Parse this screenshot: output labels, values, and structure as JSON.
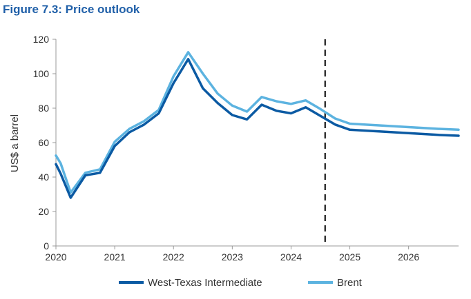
{
  "figure_title": "Figure 7.3: Price outlook",
  "chart_data": {
    "type": "line",
    "ylabel": "US$ a barrel",
    "ylim": [
      0,
      120
    ],
    "yticks": [
      0,
      20,
      40,
      60,
      80,
      100,
      120
    ],
    "xlim": [
      2020,
      2026.85
    ],
    "xticks": [
      2020,
      2021,
      2022,
      2023,
      2024,
      2025,
      2026
    ],
    "xtick_labels": [
      "2020",
      "2021",
      "2022",
      "2023",
      "2024",
      "2025",
      "2026"
    ],
    "grid": false,
    "legend": "bottom",
    "forecast_marker_x": 2024.58,
    "series": [
      {
        "name": "West-Texas Intermediate",
        "color": "#0b5aa3",
        "x": [
          2020,
          2020.08,
          2020.25,
          2020.5,
          2020.75,
          2021,
          2021.25,
          2021.5,
          2021.75,
          2022,
          2022.25,
          2022.5,
          2022.75,
          2023,
          2023.25,
          2023.5,
          2023.75,
          2024,
          2024.25,
          2024.5,
          2024.75,
          2025,
          2025.5,
          2026,
          2026.5,
          2026.85
        ],
        "values": [
          47.5,
          42,
          28,
          41,
          42.5,
          58,
          66,
          70.5,
          77,
          94.5,
          108.5,
          91.5,
          83,
          76,
          73.5,
          82,
          78.5,
          77,
          80.5,
          75.5,
          70.5,
          67.5,
          66.5,
          65.5,
          64.5,
          64
        ]
      },
      {
        "name": "Brent",
        "color": "#5cb3e0",
        "x": [
          2020,
          2020.08,
          2020.25,
          2020.5,
          2020.75,
          2021,
          2021.25,
          2021.5,
          2021.75,
          2022,
          2022.25,
          2022.5,
          2022.75,
          2023,
          2023.25,
          2023.5,
          2023.75,
          2024,
          2024.25,
          2024.5,
          2024.75,
          2025,
          2025.5,
          2026,
          2026.5,
          2026.85
        ],
        "values": [
          52.5,
          48,
          31,
          42.5,
          44.5,
          60.5,
          68,
          72.5,
          79,
          98.5,
          112.5,
          100,
          88.5,
          81.5,
          78,
          86.5,
          84,
          82.5,
          84.5,
          79.5,
          74,
          71,
          70,
          69,
          68,
          67.5
        ]
      }
    ]
  }
}
